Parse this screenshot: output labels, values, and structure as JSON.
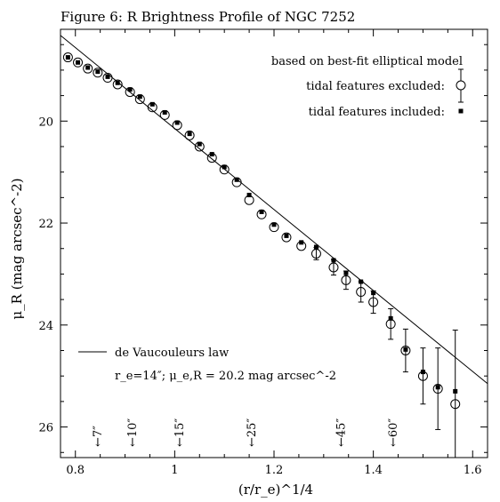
{
  "chart_data": {
    "type": "scatter",
    "title": "Figure 6: R Brightness Profile of NGC 7252",
    "xlabel": "(r/r_e)^1/4",
    "ylabel": "μ_R (mag arcsec^-2)",
    "xlim": [
      0.77,
      1.63
    ],
    "ylim": [
      26.6,
      18.2
    ],
    "y_inverted": true,
    "x_ticks": [
      0.8,
      1.0,
      1.2,
      1.4,
      1.6
    ],
    "x_tick_labels": [
      "0.8",
      "1",
      "1.2",
      "1.4",
      "1.6"
    ],
    "y_ticks": [
      20,
      22,
      24,
      26
    ],
    "y_tick_labels": [
      "20",
      "22",
      "24",
      "26"
    ],
    "legend": {
      "header": "based on best-fit elliptical model",
      "entries": [
        {
          "label": "tidal features excluded:",
          "marker": "open-circle"
        },
        {
          "label": "tidal features included:",
          "marker": "filled-square"
        }
      ]
    },
    "model_line": {
      "label": "de Vaucouleurs law",
      "params_label": "r_e=14″; μ_e,R = 20.2 mag arcsec^-2",
      "x": [
        0.77,
        1.63
      ],
      "y": [
        18.32,
        25.15
      ]
    },
    "series": [
      {
        "name": "tidal features excluded:",
        "marker": "open-circle",
        "x": [
          0.785,
          0.805,
          0.825,
          0.845,
          0.865,
          0.885,
          0.91,
          0.93,
          0.955,
          0.98,
          1.005,
          1.03,
          1.05,
          1.075,
          1.1,
          1.125,
          1.15,
          1.175,
          1.2,
          1.225,
          1.255,
          1.285,
          1.32,
          1.345,
          1.375,
          1.4,
          1.435,
          1.465,
          1.5,
          1.53,
          1.565
        ],
        "y": [
          18.75,
          18.85,
          18.97,
          19.05,
          19.15,
          19.28,
          19.43,
          19.57,
          19.73,
          19.88,
          20.08,
          20.28,
          20.5,
          20.72,
          20.95,
          21.2,
          21.55,
          21.83,
          22.08,
          22.28,
          22.45,
          22.6,
          22.87,
          23.12,
          23.35,
          23.55,
          23.98,
          24.5,
          25.0,
          25.25,
          25.55
        ],
        "err": [
          0,
          0,
          0,
          0,
          0,
          0,
          0,
          0,
          0,
          0,
          0,
          0,
          0,
          0,
          0,
          0,
          0,
          0,
          0,
          0,
          0,
          0.12,
          0.15,
          0.18,
          0.2,
          0.22,
          0.3,
          0.42,
          0.55,
          0.8,
          1.45
        ]
      },
      {
        "name": "tidal features included:",
        "marker": "filled-square",
        "x": [
          0.785,
          0.805,
          0.825,
          0.845,
          0.865,
          0.885,
          0.91,
          0.93,
          0.955,
          0.98,
          1.005,
          1.03,
          1.05,
          1.075,
          1.1,
          1.125,
          1.15,
          1.175,
          1.2,
          1.225,
          1.255,
          1.285,
          1.32,
          1.345,
          1.375,
          1.4,
          1.435,
          1.465,
          1.5,
          1.53,
          1.565
        ],
        "y": [
          18.75,
          18.85,
          18.95,
          19.03,
          19.13,
          19.25,
          19.38,
          19.52,
          19.67,
          19.83,
          20.03,
          20.25,
          20.45,
          20.65,
          20.9,
          21.15,
          21.45,
          21.78,
          22.03,
          22.25,
          22.38,
          22.47,
          22.73,
          22.98,
          23.15,
          23.37,
          23.87,
          24.48,
          24.92,
          25.22,
          25.3
        ],
        "err": [
          0,
          0,
          0,
          0,
          0,
          0,
          0,
          0,
          0,
          0,
          0,
          0,
          0,
          0,
          0,
          0,
          0,
          0,
          0,
          0,
          0,
          0,
          0,
          0,
          0,
          0,
          0,
          0,
          0,
          0,
          0
        ]
      }
    ],
    "annotations": [
      {
        "label": "←7″",
        "x": 0.845
      },
      {
        "label": "←10″",
        "x": 0.915
      },
      {
        "label": "←15″",
        "x": 1.01
      },
      {
        "label": "←25″",
        "x": 1.155
      },
      {
        "label": "←45″",
        "x": 1.335
      },
      {
        "label": "←60″",
        "x": 1.44
      }
    ],
    "grid": false
  }
}
